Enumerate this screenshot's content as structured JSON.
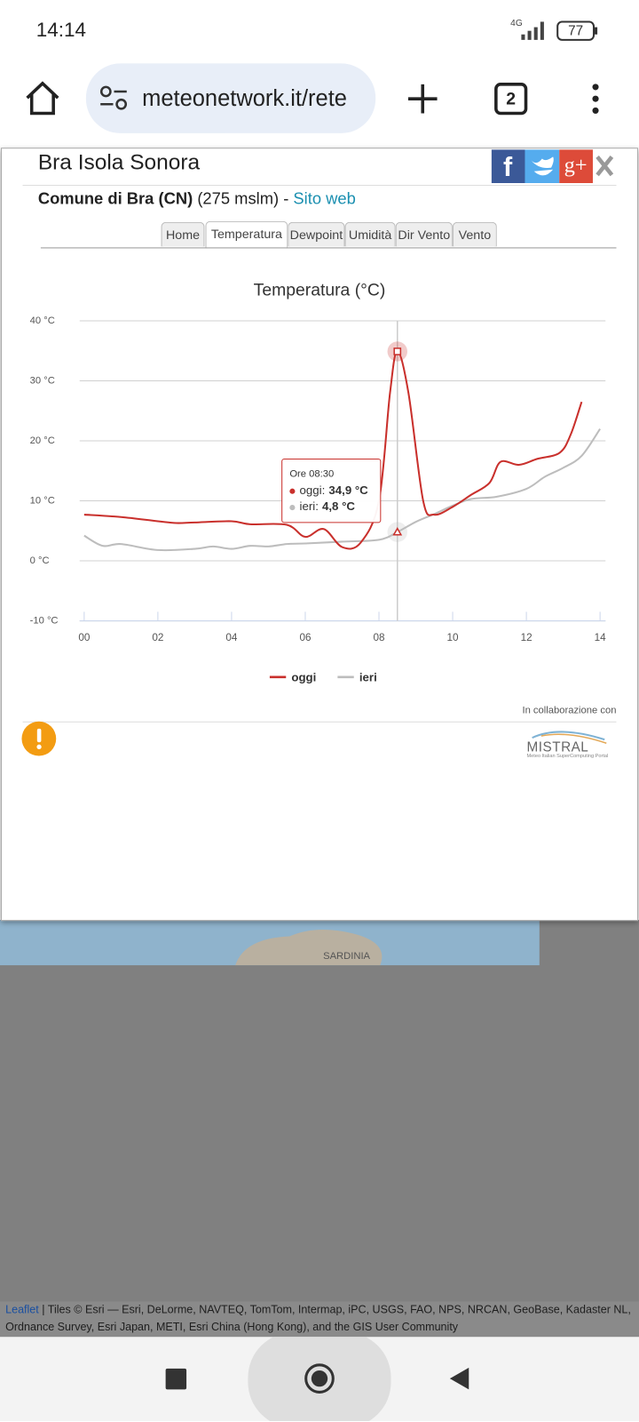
{
  "status_bar": {
    "time": "14:14",
    "network": "4G",
    "battery": "77"
  },
  "browser": {
    "url": "meteonetwork.it/rete",
    "tab_count": "2"
  },
  "popup": {
    "title": "Bra Isola Sonora",
    "social": {
      "facebook": "f",
      "google": "g+"
    },
    "subtitle": {
      "place": "Comune di Bra (CN)",
      "info": " (275 mslm) - ",
      "link": "Sito web"
    },
    "tabs": [
      "Home",
      "Temperatura",
      "Dewpoint",
      "Umidità",
      "Dir Vento",
      "Vento"
    ],
    "active_tab": 1,
    "credit": "In collaborazione con",
    "logo": {
      "name": "MISTRAL",
      "tagline": "Meteo Italian SuperComputing Portal"
    }
  },
  "chart_data": {
    "type": "line",
    "title": "Temperatura (°C)",
    "xlim": [
      0,
      14
    ],
    "xticks": [
      {
        "value": 0,
        "label": "00"
      },
      {
        "value": 2,
        "label": "02"
      },
      {
        "value": 4,
        "label": "04"
      },
      {
        "value": 6,
        "label": "06"
      },
      {
        "value": 8,
        "label": "08"
      },
      10,
      12,
      14
    ],
    "ylim": [
      -10,
      40
    ],
    "yticks": [
      {
        "value": -10,
        "label": "-10 °C"
      },
      {
        "value": 0,
        "label": "0 °C"
      },
      {
        "value": 10,
        "label": "10 °C"
      },
      {
        "value": 20,
        "label": "20 °C"
      },
      {
        "value": 30,
        "label": "30 °C"
      },
      {
        "value": 40,
        "label": "40 °C"
      }
    ],
    "grid": true,
    "legend": "bottom",
    "series": [
      {
        "name": "oggi",
        "color": "#c9302c",
        "x": [
          0,
          1,
          2,
          2.5,
          3,
          4,
          4.5,
          5.5,
          6,
          6.5,
          7,
          7.5,
          8,
          8.3,
          8.5,
          8.8,
          9.2,
          9.5,
          10,
          10.5,
          11,
          11.3,
          11.8,
          12.3,
          12.9,
          13.2,
          13.5
        ],
        "values": [
          7.7,
          7.3,
          6.6,
          6.3,
          6.4,
          6.6,
          6.1,
          6.0,
          4.0,
          5.3,
          2.3,
          3.0,
          10,
          28,
          34.9,
          28,
          10,
          7.7,
          9.0,
          11.0,
          13,
          16.5,
          16,
          17,
          18,
          21,
          26.5
        ]
      },
      {
        "name": "ieri",
        "color": "#bdbdbd",
        "x": [
          0,
          0.5,
          1,
          2,
          3,
          3.5,
          4,
          4.5,
          5,
          5.5,
          6,
          7,
          8,
          8.5,
          9,
          9.5,
          10,
          10.5,
          11.2,
          12,
          12.5,
          13,
          13.5,
          14
        ],
        "values": [
          4.2,
          2.5,
          2.8,
          1.8,
          2.0,
          2.4,
          2.0,
          2.5,
          2.4,
          2.8,
          2.9,
          3.2,
          3.5,
          4.8,
          6.5,
          7.8,
          9.2,
          10.3,
          10.7,
          12,
          14,
          15.5,
          17.5,
          22
        ]
      }
    ],
    "tooltip": {
      "header": "Ore 08:30",
      "index": [
        14,
        13
      ],
      "rows": [
        {
          "label": "oggi:",
          "value": "34,9 °C"
        },
        {
          "label": "ieri:",
          "value": "4,8 °C"
        }
      ]
    }
  },
  "map": {
    "label": "SARDINIA"
  },
  "attribution": {
    "link": "Leaflet",
    "text": " | Tiles © Esri — Esri, DeLorme, NAVTEQ, TomTom, Intermap, iPC, USGS, FAO, NPS, NRCAN, GeoBase, Kadaster NL, Ordnance Survey, Esri Japan, METI, Esri China (Hong Kong), and the GIS User Community"
  }
}
